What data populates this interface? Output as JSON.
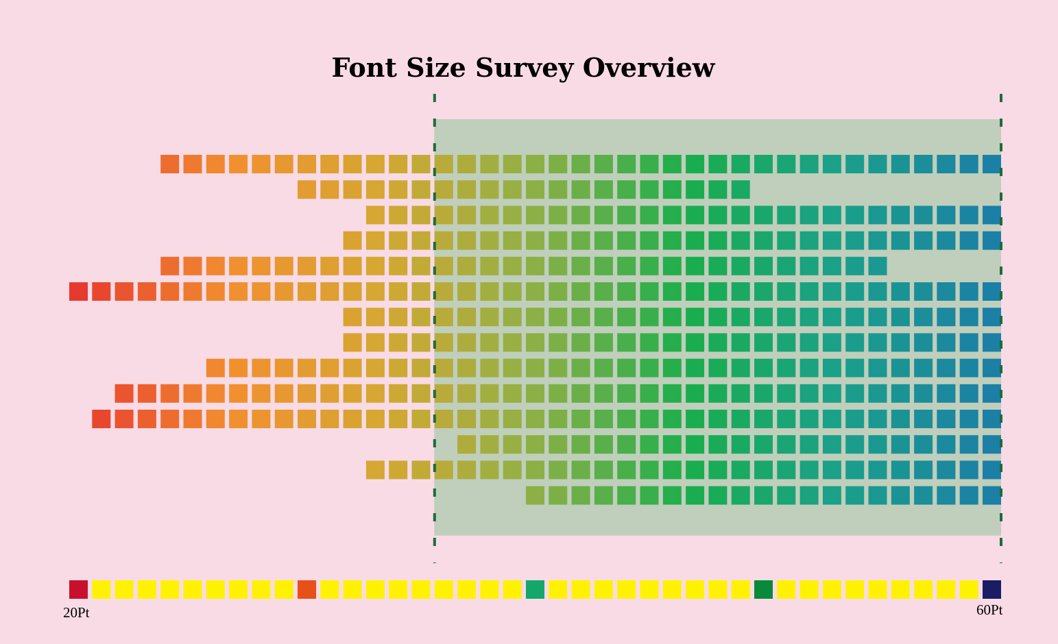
{
  "chart_data": {
    "type": "heatmap",
    "title": "Font Size Survey Overview",
    "x_range": [
      20,
      60
    ],
    "highlight_range": [
      36,
      60
    ],
    "scale_labels": {
      "min": "20Pt",
      "max": "60Pt"
    },
    "rows": [
      {
        "start": 24,
        "end": 60
      },
      {
        "start": 30,
        "end": 49
      },
      {
        "start": 33,
        "end": 60
      },
      {
        "start": 32,
        "end": 60
      },
      {
        "start": 24,
        "end": 55
      },
      {
        "start": 20,
        "end": 60
      },
      {
        "start": 32,
        "end": 60
      },
      {
        "start": 32,
        "end": 60
      },
      {
        "start": 26,
        "end": 60
      },
      {
        "start": 22,
        "end": 60
      },
      {
        "start": 21,
        "end": 60
      },
      {
        "start": 37,
        "end": 60
      },
      {
        "start": 33,
        "end": 60
      },
      {
        "start": 40,
        "end": 60
      }
    ],
    "legend_marked": [
      {
        "value": 20,
        "color": "#c8102e"
      },
      {
        "value": 30,
        "color": "#e8501a"
      },
      {
        "value": 40,
        "color": "#13a86a"
      },
      {
        "value": 50,
        "color": "#088a3a"
      },
      {
        "value": 60,
        "color": "#1a1d63"
      }
    ],
    "colors": {
      "background": "#f9dbe6",
      "highlight_fill": "#bfcfbb",
      "boundary_line": "#1e6b3c",
      "legend_default": "#fff200",
      "gradient_stops": [
        "#e63a2e",
        "#f28f2f",
        "#d4a832",
        "#8db046",
        "#1aae4c",
        "#1aa08a",
        "#1b7fa6"
      ]
    }
  }
}
